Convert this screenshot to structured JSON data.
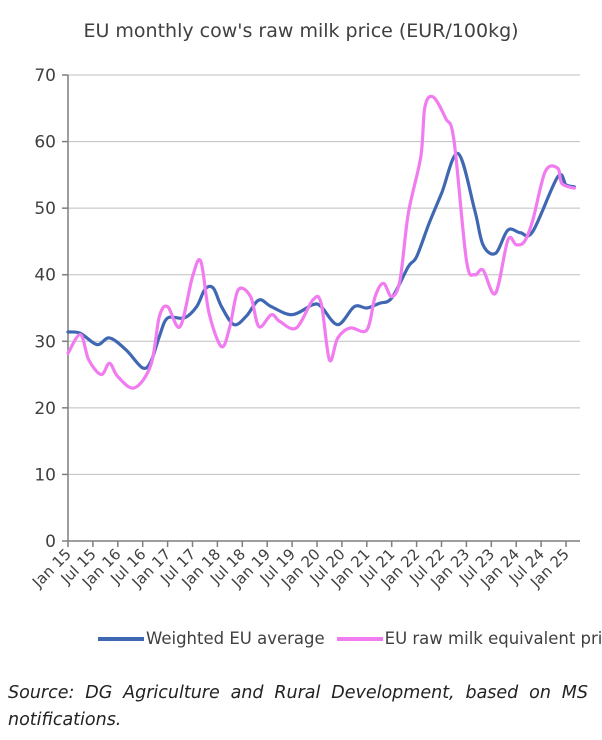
{
  "chart_data": {
    "type": "line",
    "title": "EU monthly cow's raw milk price (EUR/100kg)",
    "xlabel": "",
    "ylabel": "",
    "ylim": [
      0,
      70
    ],
    "yticks": [
      "0",
      "10",
      "20",
      "30",
      "40",
      "50",
      "60",
      "70"
    ],
    "xticks": [
      "Jan 15",
      "Jul 15",
      "Jan 16",
      "Jul 16",
      "Jan 17",
      "Jul 17",
      "Jan 18",
      "Jul 18",
      "Jan 19",
      "Jul 19",
      "Jan 20",
      "Jul 20",
      "Jan 21",
      "Jul 21",
      "Jan 22",
      "Jul 22",
      "Jan 23",
      "Jul 23",
      "Jan 24",
      "Jul 24",
      "Jan 25"
    ],
    "grid": "horizontal",
    "legend_position": "bottom",
    "series": [
      {
        "name": "Weighted EU average",
        "color": "#4068B2",
        "points": [
          [
            "2015-01",
            31.4
          ],
          [
            "2015-04",
            31.2
          ],
          [
            "2015-08",
            29.5
          ],
          [
            "2015-11",
            30.5
          ],
          [
            "2016-03",
            28.7
          ],
          [
            "2016-07",
            26
          ],
          [
            "2016-09",
            27
          ],
          [
            "2016-11",
            30.7
          ],
          [
            "2017-01",
            33.5
          ],
          [
            "2017-05",
            33.5
          ],
          [
            "2017-08",
            35.2
          ],
          [
            "2017-10",
            37.8
          ],
          [
            "2017-12",
            38
          ],
          [
            "2018-02",
            35.2
          ],
          [
            "2018-05",
            32.5
          ],
          [
            "2018-08",
            33.8
          ],
          [
            "2018-11",
            36.2
          ],
          [
            "2019-02",
            35.2
          ],
          [
            "2019-07",
            34
          ],
          [
            "2019-12",
            35.5
          ],
          [
            "2020-02",
            35.2
          ],
          [
            "2020-06",
            32.5
          ],
          [
            "2020-10",
            35.2
          ],
          [
            "2021-01",
            35
          ],
          [
            "2021-04",
            35.7
          ],
          [
            "2021-07",
            36.5
          ],
          [
            "2021-11",
            41.2
          ],
          [
            "2022-01",
            42.7
          ],
          [
            "2022-04",
            47.7
          ],
          [
            "2022-07",
            52.2
          ],
          [
            "2022-11",
            58.2
          ],
          [
            "2023-03",
            49.7
          ],
          [
            "2023-05",
            44.5
          ],
          [
            "2023-08",
            43.2
          ],
          [
            "2023-11",
            46.7
          ],
          [
            "2024-02",
            46.3
          ],
          [
            "2024-05",
            46.5
          ],
          [
            "2024-11",
            54.7
          ],
          [
            "2025-01",
            53.5
          ],
          [
            "2025-03",
            53.2
          ]
        ]
      },
      {
        "name": "EU raw milk equivalent price",
        "color": "#F07CF0",
        "points": [
          [
            "2015-01",
            28.2
          ],
          [
            "2015-04",
            31
          ],
          [
            "2015-06",
            27.2
          ],
          [
            "2015-09",
            25
          ],
          [
            "2015-11",
            26.7
          ],
          [
            "2016-01",
            24.7
          ],
          [
            "2016-05",
            23
          ],
          [
            "2016-09",
            26.5
          ],
          [
            "2016-11",
            33.7
          ],
          [
            "2017-01",
            35.2
          ],
          [
            "2017-04",
            32.2
          ],
          [
            "2017-07",
            39.7
          ],
          [
            "2017-09",
            42
          ],
          [
            "2017-11",
            34.2
          ],
          [
            "2018-02",
            29.2
          ],
          [
            "2018-04",
            32.2
          ],
          [
            "2018-06",
            37.7
          ],
          [
            "2018-09",
            36.7
          ],
          [
            "2018-11",
            32.2
          ],
          [
            "2019-02",
            34
          ],
          [
            "2019-04",
            33
          ],
          [
            "2019-08",
            32
          ],
          [
            "2019-12",
            36.2
          ],
          [
            "2020-02",
            35.7
          ],
          [
            "2020-04",
            27.2
          ],
          [
            "2020-06",
            30.5
          ],
          [
            "2020-09",
            32
          ],
          [
            "2021-01",
            31.7
          ],
          [
            "2021-03",
            36.7
          ],
          [
            "2021-05",
            38.7
          ],
          [
            "2021-07",
            36.7
          ],
          [
            "2021-09",
            39.2
          ],
          [
            "2021-11",
            49.2
          ],
          [
            "2022-02",
            57.7
          ],
          [
            "2022-03",
            65.2
          ],
          [
            "2022-05",
            66.7
          ],
          [
            "2022-08",
            63.5
          ],
          [
            "2022-10",
            60.2
          ],
          [
            "2023-01",
            42.2
          ],
          [
            "2023-03",
            40
          ],
          [
            "2023-05",
            40.7
          ],
          [
            "2023-08",
            37.2
          ],
          [
            "2023-11",
            45.2
          ],
          [
            "2024-01",
            44.5
          ],
          [
            "2024-03",
            45
          ],
          [
            "2024-05",
            48.2
          ],
          [
            "2024-08",
            55.5
          ],
          [
            "2024-11",
            56
          ],
          [
            "2024-12",
            53.7
          ],
          [
            "2025-03",
            53
          ]
        ]
      }
    ]
  },
  "source": "Source: DG Agriculture and Rural Development, based on MS notifications."
}
